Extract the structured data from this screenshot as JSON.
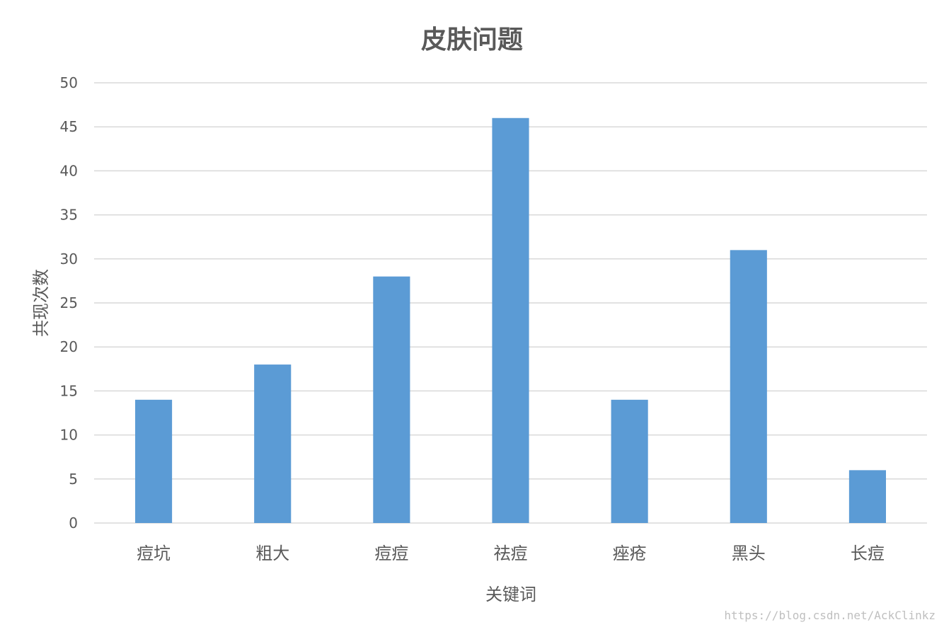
{
  "chart_data": {
    "type": "bar",
    "title": "皮肤问题",
    "xlabel": "关键词",
    "ylabel": "共现次数",
    "categories": [
      "痘坑",
      "粗大",
      "痘痘",
      "祛痘",
      "痤疮",
      "黑头",
      "长痘"
    ],
    "values": [
      14,
      18,
      28,
      46,
      14,
      31,
      6
    ],
    "ylim": [
      0,
      50
    ],
    "yticks": [
      0,
      5,
      10,
      15,
      20,
      25,
      30,
      35,
      40,
      45,
      50
    ],
    "grid": true,
    "legend": "none"
  },
  "colors": {
    "bar": "#5b9bd5",
    "grid": "#d9d9d9",
    "text": "#595959",
    "watermark": "#bfbfbf"
  },
  "watermark": "https://blog.csdn.net/AckClinkz"
}
